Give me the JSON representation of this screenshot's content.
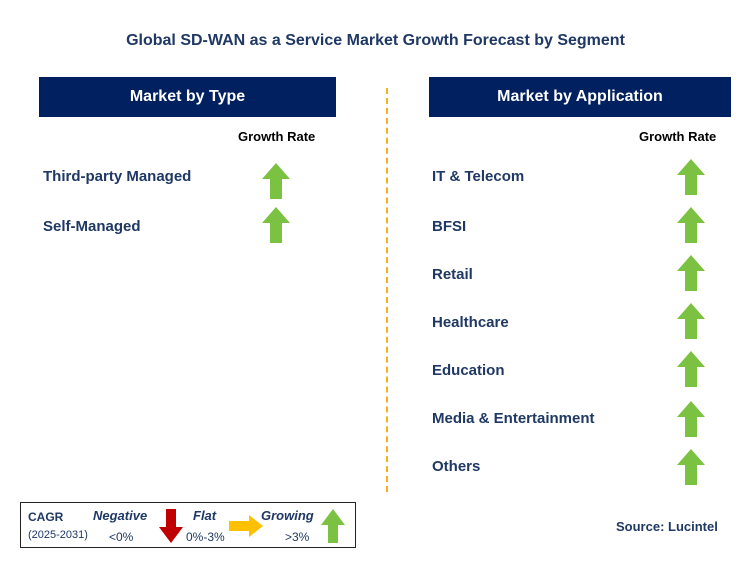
{
  "title": "Global SD-WAN as a Service Market Growth Forecast by Segment",
  "left_panel": {
    "header": "Market by Type",
    "column_label": "Growth Rate",
    "rows": [
      {
        "label": "Third-party Managed",
        "trend": "growing"
      },
      {
        "label": "Self-Managed",
        "trend": "growing"
      }
    ]
  },
  "right_panel": {
    "header": "Market by Application",
    "column_label": "Growth Rate",
    "rows": [
      {
        "label": "IT & Telecom",
        "trend": "growing"
      },
      {
        "label": "BFSI",
        "trend": "growing"
      },
      {
        "label": "Retail",
        "trend": "growing"
      },
      {
        "label": "Healthcare",
        "trend": "growing"
      },
      {
        "label": "Education",
        "trend": "growing"
      },
      {
        "label": "Media & Entertainment",
        "trend": "growing"
      },
      {
        "label": "Others",
        "trend": "growing"
      }
    ]
  },
  "legend": {
    "cagr_label": "CAGR",
    "period": "(2025-2031)",
    "negative": {
      "label": "Negative",
      "range": "<0%"
    },
    "flat": {
      "label": "Flat",
      "range": "0%-3%"
    },
    "growing": {
      "label": "Growing",
      "range": ">3%"
    }
  },
  "source": "Source: Lucintel",
  "colors": {
    "header_bg": "#002060",
    "text_navy": "#1f3864",
    "arrow_green": "#7cc242",
    "arrow_red": "#c00000",
    "arrow_yellow": "#ffc000",
    "divider": "#f5b020"
  }
}
